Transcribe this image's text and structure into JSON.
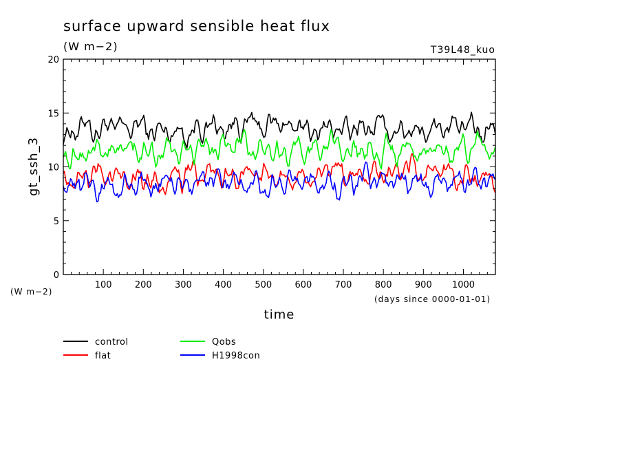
{
  "chart_data": {
    "type": "line",
    "title": "surface upward sensible heat flux",
    "subtitle": "(W m−2)",
    "tag": "T39L48_kuo",
    "xlabel": "time",
    "xunits": "(days since 0000-01-01)",
    "ylabel": "gt_ssh_3",
    "yunits": "(W m−2)",
    "xlim": [
      0,
      1080
    ],
    "ylim": [
      0,
      20
    ],
    "xticks": [
      100,
      200,
      300,
      400,
      500,
      600,
      700,
      800,
      900,
      1000
    ],
    "yticks": [
      0,
      5,
      10,
      15,
      20
    ],
    "grid": false,
    "legend_position": "bottom-left",
    "series": [
      {
        "name": "control",
        "color": "#000000",
        "x": [
          0,
          30,
          60,
          90,
          120,
          150,
          180,
          210,
          240,
          270,
          300,
          330,
          360,
          390,
          420,
          450,
          480,
          510,
          540,
          570,
          600,
          630,
          660,
          690,
          720,
          750,
          780,
          810,
          840,
          870,
          900,
          930,
          960,
          990,
          1020,
          1050,
          1080
        ],
        "values": [
          12.6,
          13.6,
          14.0,
          13.4,
          13.8,
          13.2,
          13.9,
          13.5,
          13.1,
          13.4,
          13.2,
          13.6,
          14.0,
          13.5,
          13.7,
          14.1,
          13.8,
          13.6,
          14.3,
          13.4,
          13.6,
          13.2,
          13.8,
          13.5,
          13.3,
          13.6,
          13.9,
          13.2,
          13.5,
          13.8,
          13.4,
          14.0,
          13.2,
          13.6,
          13.9,
          13.4,
          13.6
        ]
      },
      {
        "name": "flat",
        "color": "#ff0000",
        "x": [
          0,
          30,
          60,
          90,
          120,
          150,
          180,
          210,
          240,
          270,
          300,
          330,
          360,
          390,
          420,
          450,
          480,
          510,
          540,
          570,
          600,
          630,
          660,
          690,
          720,
          750,
          780,
          810,
          840,
          870,
          900,
          930,
          960,
          990,
          1020,
          1050,
          1080
        ],
        "values": [
          9.2,
          9.0,
          9.6,
          9.1,
          9.3,
          9.4,
          9.0,
          9.2,
          8.6,
          9.3,
          9.1,
          9.5,
          9.4,
          9.0,
          9.3,
          9.6,
          9.1,
          9.0,
          8.8,
          9.4,
          9.2,
          9.0,
          9.3,
          9.5,
          9.0,
          9.2,
          9.4,
          9.1,
          9.3,
          9.6,
          9.2,
          9.0,
          9.4,
          9.2,
          9.3,
          9.1,
          8.9
        ]
      },
      {
        "name": "Qobs",
        "color": "#00ee00",
        "x": [
          0,
          30,
          60,
          90,
          120,
          150,
          180,
          210,
          240,
          270,
          300,
          330,
          360,
          390,
          420,
          450,
          480,
          510,
          540,
          570,
          600,
          630,
          660,
          690,
          720,
          750,
          780,
          810,
          840,
          870,
          900,
          930,
          960,
          990,
          1020,
          1050,
          1080
        ],
        "values": [
          11.6,
          11.0,
          11.8,
          11.3,
          11.5,
          12.0,
          11.4,
          11.8,
          11.2,
          11.6,
          11.4,
          12.0,
          11.8,
          11.5,
          11.9,
          12.0,
          11.6,
          11.8,
          11.4,
          11.6,
          11.9,
          11.3,
          11.8,
          11.6,
          11.5,
          11.9,
          11.2,
          11.7,
          11.5,
          11.8,
          11.4,
          11.9,
          11.6,
          11.4,
          11.8,
          11.7,
          11.2
        ]
      },
      {
        "name": "H1998con",
        "color": "#0000ff",
        "x": [
          0,
          30,
          60,
          90,
          120,
          150,
          180,
          210,
          240,
          270,
          300,
          330,
          360,
          390,
          420,
          450,
          480,
          510,
          540,
          570,
          600,
          630,
          660,
          690,
          720,
          750,
          780,
          810,
          840,
          870,
          900,
          930,
          960,
          990,
          1020,
          1050,
          1080
        ],
        "values": [
          8.8,
          8.4,
          8.6,
          8.2,
          8.5,
          8.3,
          8.9,
          8.4,
          8.6,
          8.8,
          8.2,
          8.5,
          8.7,
          8.3,
          8.6,
          8.1,
          8.8,
          7.9,
          8.5,
          8.4,
          8.7,
          8.3,
          8.6,
          8.2,
          8.5,
          8.8,
          8.3,
          8.6,
          8.4,
          8.9,
          8.2,
          8.5,
          8.1,
          8.7,
          8.3,
          8.6,
          8.5
        ]
      }
    ]
  }
}
